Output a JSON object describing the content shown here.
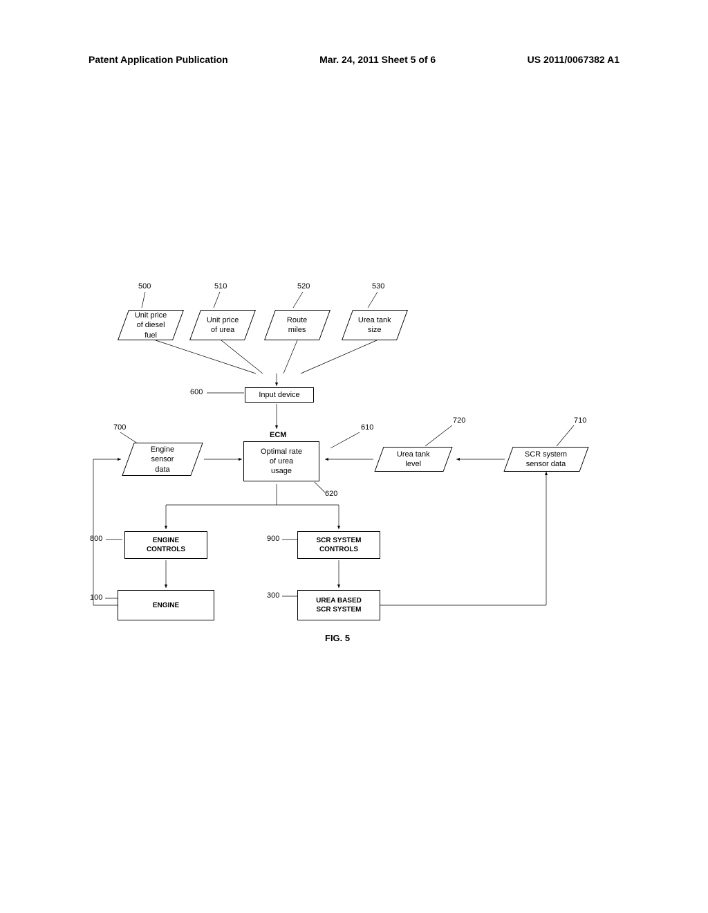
{
  "header": {
    "left": "Patent Application Publication",
    "center": "Mar. 24, 2011  Sheet 5 of 6",
    "right": "US 2011/0067382 A1"
  },
  "labels": {
    "n500": "500",
    "n510": "510",
    "n520": "520",
    "n530": "530",
    "n600": "600",
    "n610": "610",
    "n620": "620",
    "n700": "700",
    "n710": "710",
    "n720": "720",
    "n800": "800",
    "n900": "900",
    "n100": "100",
    "n300": "300"
  },
  "nodes": {
    "diesel": "Unit price\nof diesel\nfuel",
    "urea_price": "Unit price\nof urea",
    "route": "Route\nmiles",
    "tank_size": "Urea tank\nsize",
    "input_device": "Input device",
    "ecm": "ECM",
    "engine_sensor": "Engine\nsensor\ndata",
    "optimal": "Optimal rate\nof urea\nusage",
    "tank_level": "Urea tank\nlevel",
    "scr_sensor": "SCR system\nsensor data",
    "engine_controls": "ENGINE\nCONTROLS",
    "scr_controls": "SCR SYSTEM\nCONTROLS",
    "engine": "ENGINE",
    "scr_system": "UREA BASED\nSCR SYSTEM"
  },
  "figure_caption": "FIG. 5"
}
